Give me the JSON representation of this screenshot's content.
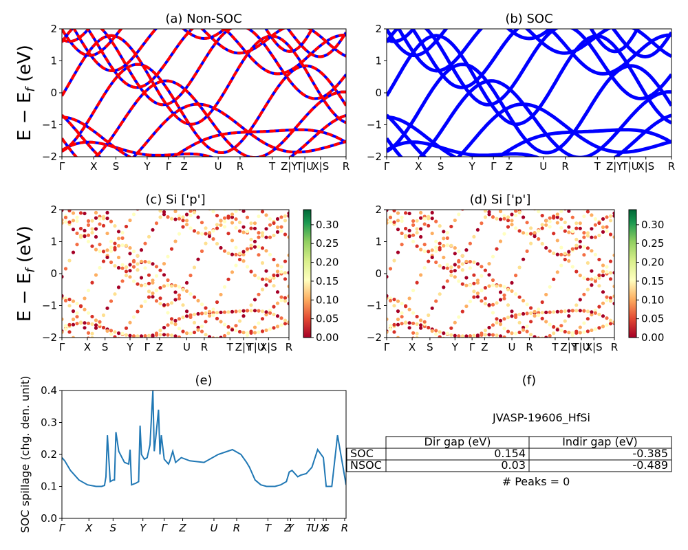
{
  "chart_data": [
    {
      "id": "a",
      "type": "line",
      "title": "(a) Non-SOC",
      "ylabel": "E − E_f (eV)",
      "ylim": [
        -2,
        2
      ],
      "yticks": [
        "2",
        "1",
        "0",
        "−1",
        "−2"
      ],
      "kpath": [
        "Γ",
        "X",
        "S",
        "Y",
        "Γ",
        "Z",
        "U",
        "R",
        "T",
        "Z|Y",
        "T|U",
        "X|S",
        "R"
      ],
      "series": [
        {
          "color": "#0000ff",
          "style": "solid",
          "values": [
            [
              0.0,
              -1.95
            ],
            [
              0.5,
              -0.35
            ],
            [
              1.0,
              1.2
            ]
          ]
        },
        {
          "color": "#ff0000",
          "style": "dashed",
          "values": [
            [
              0.0,
              -1.95
            ],
            [
              0.5,
              -0.35
            ],
            [
              1.0,
              1.2
            ]
          ]
        }
      ]
    },
    {
      "id": "b",
      "type": "line",
      "title": "(b) SOC",
      "ylim": [
        -2,
        2
      ],
      "yticks": [
        "2",
        "1",
        "0",
        "−1",
        "−2"
      ],
      "kpath": [
        "Γ",
        "X",
        "S",
        "Y",
        "Γ",
        "Z",
        "U",
        "R",
        "T",
        "Z|Y",
        "T|U",
        "X|S",
        "R"
      ],
      "series": [
        {
          "color": "#0000ff",
          "style": "solid"
        }
      ]
    },
    {
      "id": "c",
      "type": "scatter",
      "title": "(c)  Si ['p']",
      "ylabel": "E − E_f (eV)",
      "ylim": [
        -2,
        2
      ],
      "yticks": [
        "2",
        "1",
        "0",
        "−1",
        "−2"
      ],
      "kpath": [
        "Γ",
        "X",
        "S",
        "Y",
        "Γ",
        "Z",
        "U",
        "R",
        "T",
        "Z|Y",
        "T|U",
        "X|S",
        "R"
      ],
      "colorbar": {
        "cmap": "RdYlGn",
        "min": 0.0,
        "max": 0.34,
        "ticks": [
          "0.00",
          "0.05",
          "0.10",
          "0.15",
          "0.20",
          "0.25",
          "0.30"
        ]
      }
    },
    {
      "id": "d",
      "type": "scatter",
      "title": "(d) Si ['p']",
      "ylim": [
        -2,
        2
      ],
      "yticks": [
        "2",
        "1",
        "0",
        "−1",
        "−2"
      ],
      "kpath": [
        "Γ",
        "X",
        "S",
        "Y",
        "Γ",
        "Z",
        "U",
        "R",
        "T",
        "Z|Y",
        "T|U",
        "X|S",
        "R"
      ],
      "colorbar": {
        "cmap": "RdYlGn",
        "min": 0.0,
        "max": 0.34,
        "ticks": [
          "0.00",
          "0.05",
          "0.10",
          "0.15",
          "0.20",
          "0.25",
          "0.30"
        ]
      }
    },
    {
      "id": "e",
      "type": "line",
      "title": "(e)",
      "ylabel": "SOC spillage (chg. den. unit)",
      "ylim": [
        0.0,
        0.4
      ],
      "yticks": [
        "0.4",
        "0.3",
        "0.2",
        "0.1",
        "0.0"
      ],
      "xticks": [
        "Γ",
        "X",
        "S",
        "Y",
        "Γ",
        "Z",
        "U",
        "R",
        "T",
        "Z",
        "Y",
        "T",
        "U",
        "X",
        "S",
        "R"
      ],
      "series": [
        {
          "color": "#1f77b4",
          "x": [
            0.0,
            0.01,
            0.03,
            0.06,
            0.09,
            0.12,
            0.14,
            0.15,
            0.155,
            0.16,
            0.17,
            0.18,
            0.185,
            0.19,
            0.2,
            0.22,
            0.235,
            0.24,
            0.245,
            0.26,
            0.27,
            0.275,
            0.28,
            0.29,
            0.3,
            0.31,
            0.32,
            0.325,
            0.33,
            0.34,
            0.345,
            0.35,
            0.36,
            0.37,
            0.375,
            0.38,
            0.39,
            0.4,
            0.42,
            0.45,
            0.5,
            0.55,
            0.6,
            0.63,
            0.65,
            0.66,
            0.67,
            0.68,
            0.7,
            0.72,
            0.75,
            0.77,
            0.78,
            0.79,
            0.8,
            0.81,
            0.82,
            0.83,
            0.84,
            0.86,
            0.88,
            0.9,
            0.92,
            0.93,
            0.935,
            0.94,
            0.95,
            0.97,
            1.0
          ],
          "values": [
            0.19,
            0.18,
            0.15,
            0.12,
            0.105,
            0.1,
            0.1,
            0.103,
            0.13,
            0.26,
            0.115,
            0.12,
            0.12,
            0.27,
            0.21,
            0.175,
            0.17,
            0.215,
            0.105,
            0.11,
            0.115,
            0.29,
            0.2,
            0.185,
            0.19,
            0.23,
            0.4,
            0.21,
            0.25,
            0.34,
            0.2,
            0.26,
            0.185,
            0.175,
            0.17,
            0.18,
            0.21,
            0.175,
            0.19,
            0.18,
            0.175,
            0.2,
            0.215,
            0.2,
            0.175,
            0.16,
            0.14,
            0.12,
            0.105,
            0.1,
            0.1,
            0.105,
            0.11,
            0.115,
            0.145,
            0.15,
            0.14,
            0.13,
            0.135,
            0.14,
            0.16,
            0.215,
            0.19,
            0.1,
            0.1,
            0.1,
            0.1,
            0.26,
            0.105
          ]
        }
      ]
    }
  ],
  "table": {
    "title": "(f)",
    "name": "JVASP-19606_HfSi",
    "headers": [
      "Dir gap (eV)",
      "Indir gap (eV)"
    ],
    "rows": [
      {
        "label": "SOC",
        "dir": "0.154",
        "indir": "-0.385"
      },
      {
        "label": "NSOC",
        "dir": "0.03",
        "indir": "-0.489"
      }
    ],
    "footer": "# Peaks = 0"
  }
}
